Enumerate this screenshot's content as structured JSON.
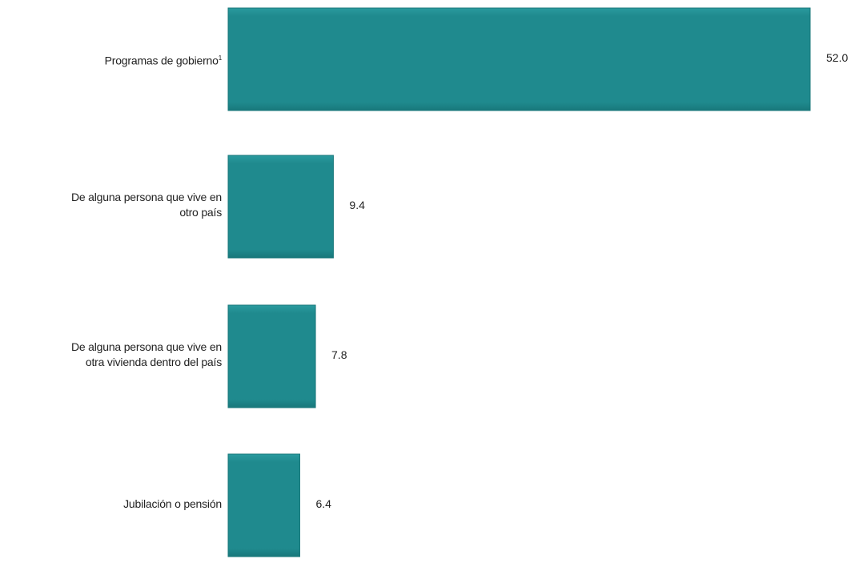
{
  "chart_data": {
    "type": "bar",
    "orientation": "horizontal",
    "categories": [
      "Programas de gobierno",
      "De alguna persona que vive en otro país",
      "De alguna persona que vive en otra vivienda dentro del país",
      "Jubilación o pensión"
    ],
    "category_lines": [
      [
        "Programas de gobierno"
      ],
      [
        "De alguna persona que vive en",
        "otro país"
      ],
      [
        "De alguna persona que vive en",
        "otra vivienda dentro del país"
      ],
      [
        "Jubilación o pensión"
      ]
    ],
    "category_footnotes": [
      "1",
      "",
      "",
      ""
    ],
    "values": [
      52.0,
      9.4,
      7.8,
      6.4
    ],
    "value_labels": [
      "52.0",
      "9.4",
      "7.8",
      "6.4"
    ],
    "xlim": [
      0,
      52.0
    ],
    "grid": false,
    "legend": "none",
    "colors": {
      "bar": "#1f8a8e",
      "bar_edge": "#18777a",
      "text": "#222222"
    }
  }
}
